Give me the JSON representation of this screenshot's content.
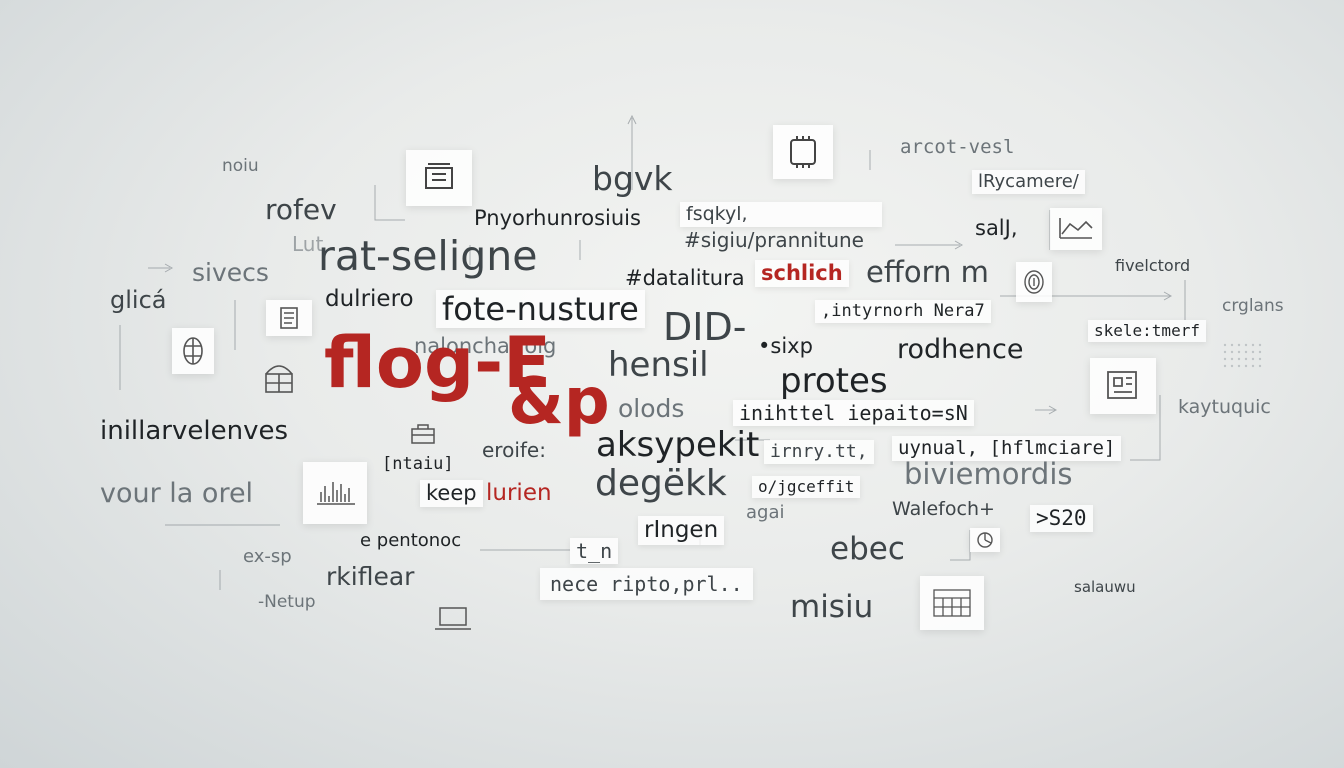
{
  "words": {
    "noiu": "noiu",
    "rofev": "rofev",
    "lut": "Lut",
    "rat_seligne": "rat-seligne",
    "sivecs": "sivecs",
    "glica": "glicá",
    "dulriero": "dulriero",
    "fote_nusture": "fote-nusture",
    "pnyorhunrosiuis": "Pnyorhunrosiuis",
    "bgvk": "bgvk",
    "fsqkyl": "fsqkyl,",
    "sgiu_prannitune": "#sigiu/prannitune",
    "datalitura": "#datalitura",
    "schlich": "schlich",
    "efforn": "efforn m",
    "arcotvesl": "arcot-vesl",
    "rycamere": "lRycamere/",
    "salj": "salJ,",
    "fivelctord": "fivelctord",
    "crglans": "crglans",
    "intyrnorh": ",intyrnorh Nera7",
    "skeletmerf": "skele:tmerf",
    "did": "DID-",
    "sixp": "•sixp",
    "rodhence": "rodhence",
    "naloncharlolg": "naloncharlolg",
    "flog": "flog-E",
    "ap": "&p",
    "hensil": "hensil",
    "protes": "protes",
    "inillarvelenves": "inillarvelenves",
    "olods": "olods",
    "inihttel": "inihttel iepaito=sN",
    "kaytuquic": "kaytuquic",
    "mtaiu": "[ntaiu]",
    "eroife": "eroife:",
    "aksypekit": "aksypekit",
    "irnry": "irnry.tt,",
    "uynual": "uynual, [hflmciare]",
    "vour_la_orel": "vour la orel",
    "keep": "keep",
    "lurien": "lurien",
    "degekk": "degëkk",
    "ojgeefflt": "o/jgceffit",
    "biviemordis": "biviemordis",
    "agai": "agai",
    "walefoch": "Walefoch+",
    "s20": ">S20",
    "epentonoc": "e pentonoc",
    "ringen": "rIngen",
    "tn": "t_n",
    "ex_sp": "ex-sp",
    "rkiflear": "rkiflear",
    "nece_ripto": "nece ripto,prl..",
    "ebec": "ebec",
    "netup": "-Netup",
    "misiu": "misiu",
    "salauwu": "salauwu"
  },
  "icons": [
    "cash-register-icon",
    "cpu-chip-icon",
    "line-chart-icon",
    "document-icon",
    "brain-icon",
    "building-icon",
    "bar-chart-icon",
    "fingerprint-icon",
    "pie-chart-icon",
    "drawing-board-icon",
    "toolbox-icon",
    "calendar-icon",
    "laptop-icon"
  ],
  "colors": {
    "accent_red": "#b52622",
    "text_dark": "#1f2326",
    "text_mid": "#3e4549",
    "text_light": "#6c7479",
    "background": "#e9ebea"
  }
}
